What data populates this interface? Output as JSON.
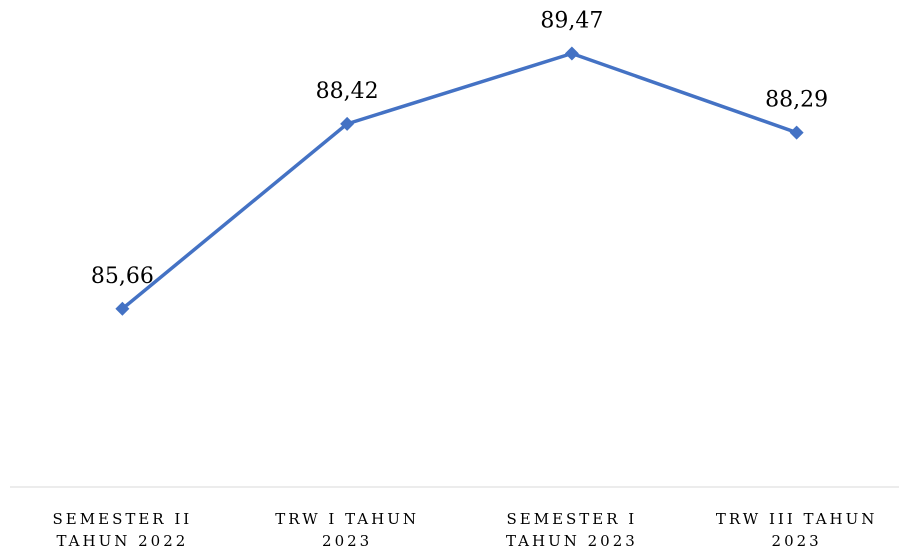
{
  "chart_data": {
    "type": "line",
    "categories": [
      "SEMESTER II TAHUN 2022",
      "TRW I TAHUN 2023",
      "SEMESTER I TAHUN 2023",
      "TRW III TAHUN 2023"
    ],
    "series": [
      {
        "color": "#4472c4",
        "values": [
          85.66,
          88.42,
          89.47,
          88.29
        ],
        "value_labels": [
          "85,66",
          "88,42",
          "89,47",
          "88,29"
        ]
      }
    ],
    "ylim": [
      83,
      90
    ]
  }
}
